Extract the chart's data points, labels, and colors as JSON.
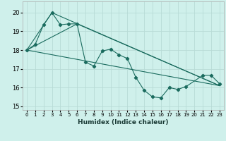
{
  "xlabel": "Humidex (Indice chaleur)",
  "bg_color": "#cff0eb",
  "grid_color": "#b8dbd6",
  "line_color": "#1a6b5e",
  "xlim": [
    -0.5,
    23.5
  ],
  "ylim": [
    14.8,
    20.6
  ],
  "yticks": [
    15,
    16,
    17,
    18,
    19,
    20
  ],
  "xticks": [
    0,
    1,
    2,
    3,
    4,
    5,
    6,
    7,
    8,
    9,
    10,
    11,
    12,
    13,
    14,
    15,
    16,
    17,
    18,
    19,
    20,
    21,
    22,
    23
  ],
  "series1_x": [
    0,
    1,
    2,
    3,
    4,
    5,
    6,
    7,
    8,
    9,
    10,
    11,
    12,
    13,
    14,
    15,
    16,
    17,
    18,
    19,
    21,
    22,
    23
  ],
  "series1_y": [
    18.0,
    18.3,
    19.35,
    20.0,
    19.35,
    19.4,
    19.4,
    17.35,
    17.15,
    17.95,
    18.05,
    17.75,
    17.55,
    16.55,
    15.85,
    15.5,
    15.45,
    16.0,
    15.9,
    16.05,
    16.65,
    16.65,
    16.2
  ],
  "series2_x": [
    0,
    23
  ],
  "series2_y": [
    18.0,
    16.1
  ],
  "series3_x": [
    0,
    3,
    23
  ],
  "series3_y": [
    18.0,
    20.0,
    16.1
  ],
  "series4_x": [
    0,
    6,
    23
  ],
  "series4_y": [
    18.0,
    19.4,
    16.1
  ]
}
